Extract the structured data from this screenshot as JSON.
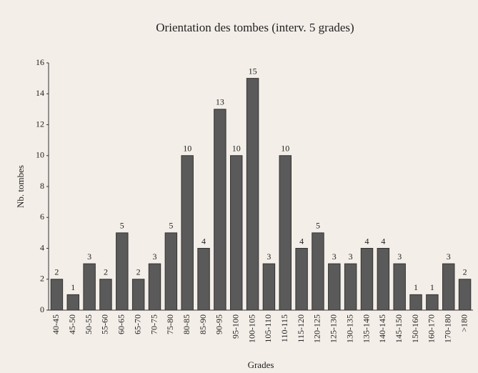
{
  "chart_data": {
    "type": "bar",
    "title": "Orientation des tombes (interv. 5 grades)",
    "x_label": "Grades",
    "y_label": "Nb. tombes",
    "categories": [
      "40-45",
      "45-50",
      "50-55",
      "55-60",
      "60-65",
      "65-70",
      "70-75",
      "75-80",
      "80-85",
      "85-90",
      "90-95",
      "95-100",
      "100-105",
      "105-110",
      "110-115",
      "115-120",
      "120-125",
      "125-130",
      "130-135",
      "135-140",
      "140-145",
      "145-150",
      "150-160",
      "160-170",
      "170-180",
      ">180"
    ],
    "values": [
      2,
      1,
      3,
      2,
      5,
      2,
      3,
      5,
      10,
      4,
      13,
      10,
      15,
      3,
      10,
      4,
      5,
      3,
      3,
      4,
      4,
      3,
      1,
      1,
      3,
      2
    ],
    "color": "#5a5a5a",
    "ylim": [
      0,
      16
    ],
    "yticks": [
      0,
      2,
      4,
      6,
      8,
      10,
      12,
      14,
      16
    ],
    "grid": false
  }
}
